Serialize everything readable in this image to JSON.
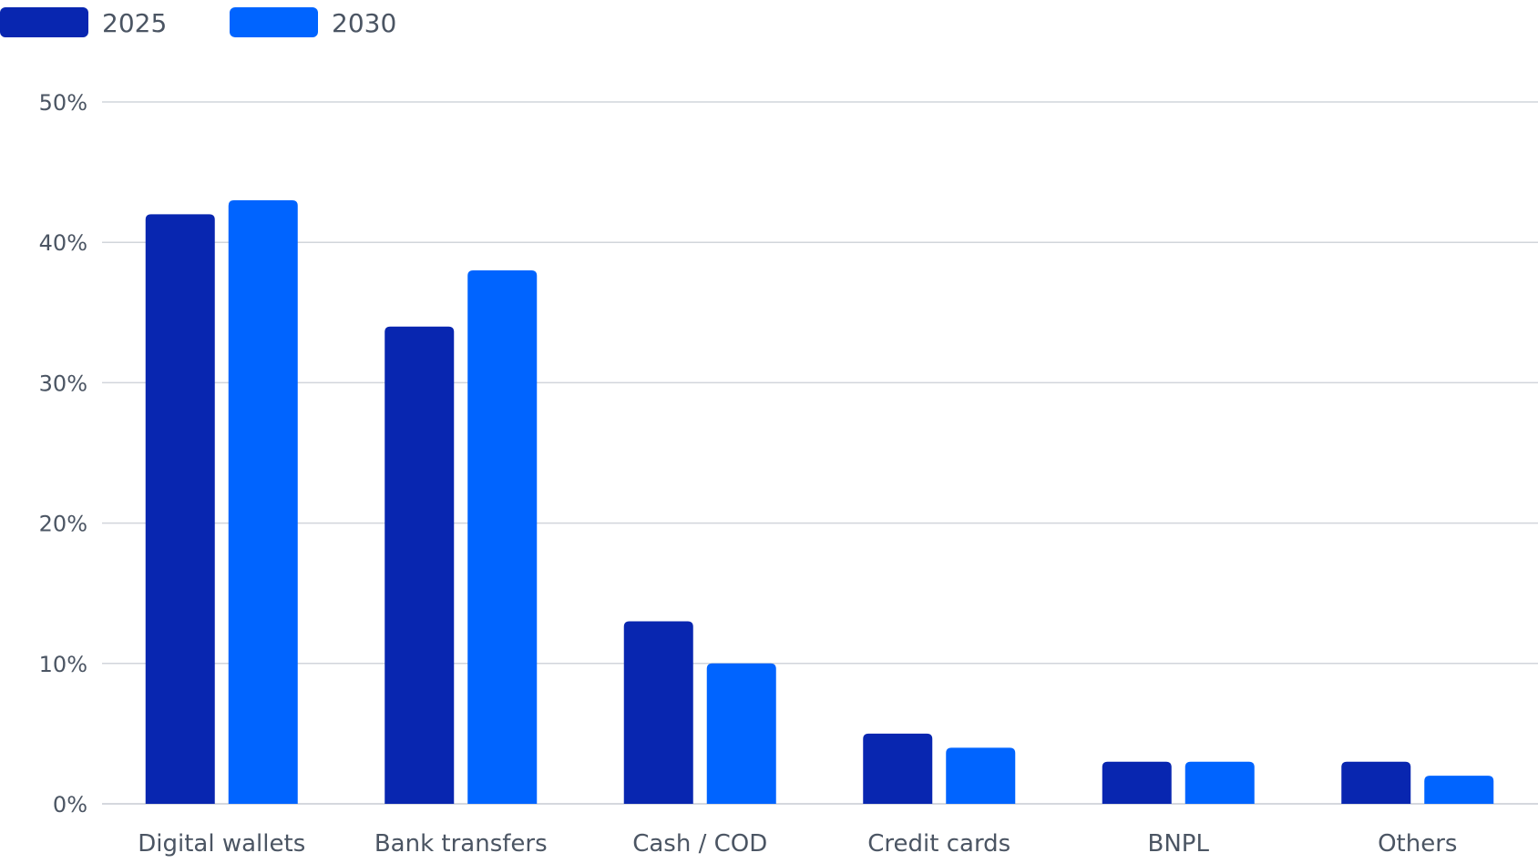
{
  "chart_data": {
    "type": "bar",
    "categories": [
      "Digital wallets",
      "Bank transfers",
      "Cash / COD",
      "Credit cards",
      "BNPL",
      "Others"
    ],
    "series": [
      {
        "name": "2025",
        "color": "#0826b0",
        "values": [
          42,
          34,
          13,
          5,
          3,
          3
        ]
      },
      {
        "name": "2030",
        "color": "#0064ff",
        "values": [
          43,
          38,
          10,
          4,
          3,
          2
        ]
      }
    ],
    "yticks": [
      {
        "value": 0,
        "label": "0%"
      },
      {
        "value": 10,
        "label": "10%"
      },
      {
        "value": 20,
        "label": "20%"
      },
      {
        "value": 30,
        "label": "30%"
      },
      {
        "value": 40,
        "label": "40%"
      },
      {
        "value": 50,
        "label": "50%"
      }
    ],
    "ylim": [
      0,
      50
    ],
    "grid": true,
    "legend_position": "top-left",
    "colors": {
      "grid": "#d1d5db",
      "text": "#4b5563"
    }
  }
}
